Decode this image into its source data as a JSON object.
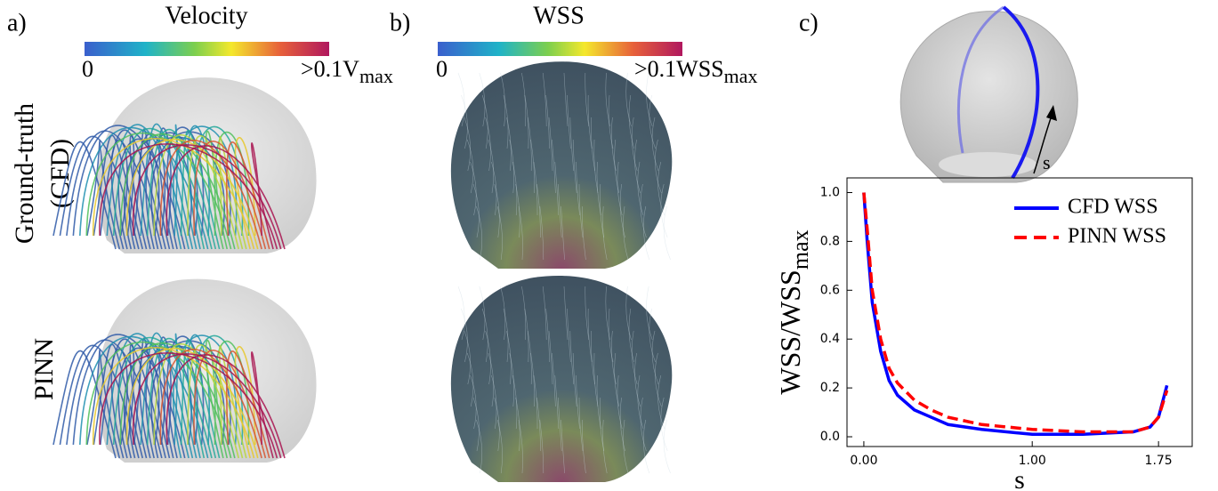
{
  "panels": {
    "a": {
      "label": "a)",
      "title": "Velocity",
      "cbar_min": "0",
      "cbar_max": ">0.1V",
      "cbar_max_sub": "max"
    },
    "b": {
      "label": "b)",
      "title": "WSS",
      "cbar_min": "0",
      "cbar_max": ">0.1WSS",
      "cbar_max_sub": "max"
    },
    "c": {
      "label": "c)",
      "arrow_label": "s"
    },
    "rows": {
      "row1_line1": "Ground-truth",
      "row1_line2": "(CFD)",
      "row2": "PINN"
    }
  },
  "chart_data": {
    "type": "line",
    "ylabel": "WSS/WSS",
    "ylabel_sub": "max",
    "xlabel": "s",
    "x": [
      0,
      0.02,
      0.05,
      0.1,
      0.15,
      0.2,
      0.3,
      0.4,
      0.5,
      0.7,
      1.0,
      1.3,
      1.6,
      1.7,
      1.75,
      1.8
    ],
    "series": [
      {
        "name": "CFD WSS",
        "color": "#0000ff",
        "dash": false,
        "values": [
          1.0,
          0.8,
          0.55,
          0.35,
          0.23,
          0.17,
          0.11,
          0.08,
          0.05,
          0.03,
          0.01,
          0.01,
          0.02,
          0.04,
          0.08,
          0.21
        ]
      },
      {
        "name": "PINN WSS",
        "color": "#ff0000",
        "dash": true,
        "values": [
          1.0,
          0.85,
          0.6,
          0.4,
          0.28,
          0.22,
          0.15,
          0.11,
          0.08,
          0.05,
          0.03,
          0.02,
          0.02,
          0.04,
          0.08,
          0.19
        ]
      }
    ],
    "xlim": [
      -0.1,
      1.95
    ],
    "ylim": [
      -0.04,
      1.06
    ],
    "xticks": [
      {
        "value": 0,
        "label": "0.00"
      },
      {
        "value": 1,
        "label": "1.00"
      },
      {
        "value": 1.75,
        "label": "1.75"
      }
    ],
    "yticks": [
      {
        "value": 0,
        "label": "0.0"
      },
      {
        "value": 0.2,
        "label": "0.2"
      },
      {
        "value": 0.4,
        "label": "0.4"
      },
      {
        "value": 0.6,
        "label": "0.6"
      },
      {
        "value": 0.8,
        "label": "0.8"
      },
      {
        "value": 1,
        "label": "1.0"
      }
    ],
    "legend": "upper right"
  }
}
